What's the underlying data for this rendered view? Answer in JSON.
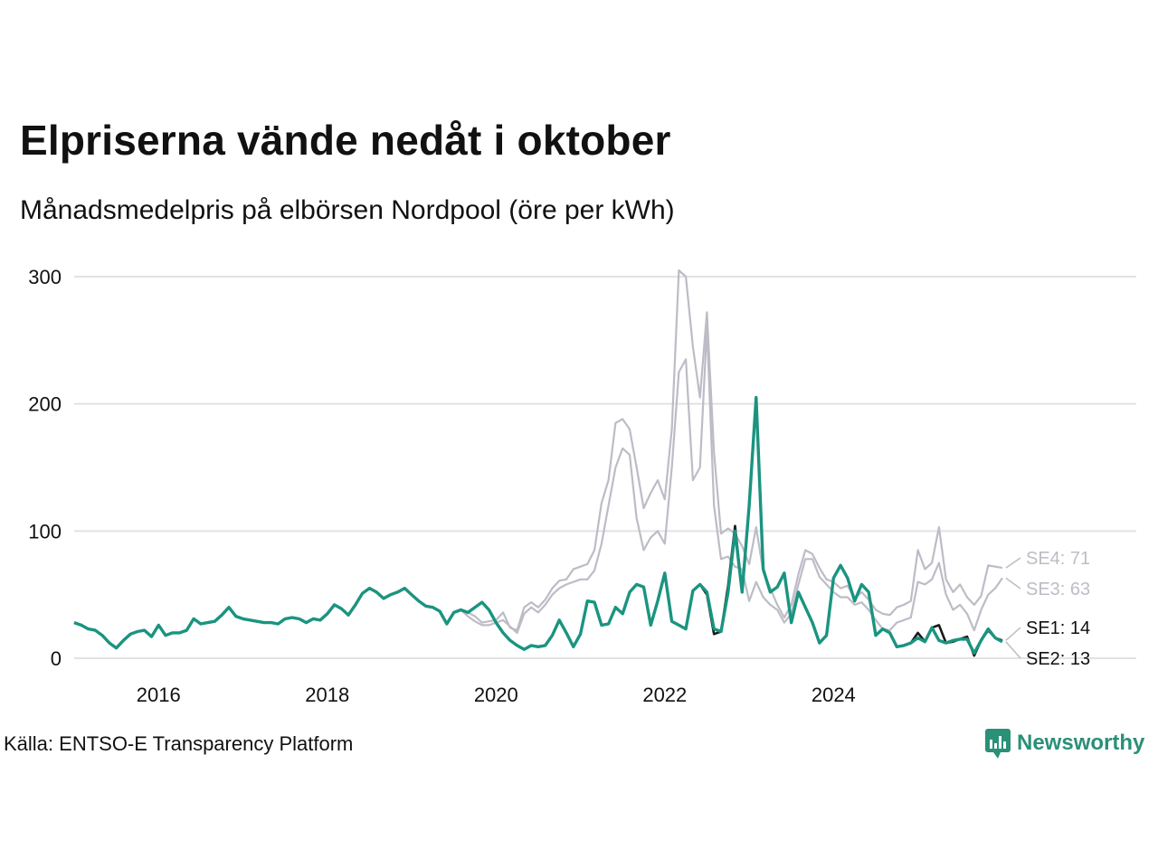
{
  "title": "Elpriserna vände nedåt i oktober",
  "subtitle": "Månadsmedelpris på elbörsen Nordpool (öre per kWh)",
  "source": "Källa: ENTSO-E Transparency Platform",
  "brand": {
    "name": "Newsworthy",
    "color": "#2a9078",
    "icon": "newsworthy-logo-icon"
  },
  "colors": {
    "highlight": "#1a9480",
    "se1": "#1a1a1a",
    "context": "#bdbcc6",
    "grid": "#e2e2e6"
  },
  "chart_data": {
    "type": "line",
    "title": "Elpriserna vände nedåt i oktober",
    "subtitle": "Månadsmedelpris på elbörsen Nordpool (öre per kWh)",
    "xlabel": "",
    "ylabel": "",
    "ylim": [
      0,
      300
    ],
    "xlim": [
      2015.0,
      2025.83
    ],
    "yticks": [
      0,
      100,
      200,
      300
    ],
    "yticklabels": [
      "0",
      "100",
      "200",
      "300"
    ],
    "xticks": [
      2016,
      2018,
      2020,
      2022,
      2024
    ],
    "xticklabels": [
      "2016",
      "2018",
      "2020",
      "2022",
      "2024"
    ],
    "grid": true,
    "start": "2015-01",
    "frequency": "monthly",
    "base": [
      28,
      26,
      23,
      22,
      18,
      12,
      8,
      14,
      19,
      21,
      22,
      17,
      26,
      18,
      20,
      20,
      22,
      31,
      27,
      28,
      29,
      34,
      40,
      33,
      31,
      30,
      29,
      28,
      28,
      27,
      31,
      32,
      31,
      28,
      31,
      30,
      35,
      42,
      39,
      34,
      42,
      51,
      55,
      52,
      47,
      50,
      52,
      55,
      50,
      45,
      41,
      40,
      37,
      27,
      36,
      38,
      36,
      40,
      44,
      38,
      28,
      20,
      14,
      10,
      7,
      10,
      9,
      10,
      18,
      30,
      20,
      9,
      19,
      45,
      44,
      26,
      27,
      40,
      35,
      52,
      58,
      56,
      26,
      45,
      67,
      29,
      26,
      23,
      53,
      58,
      52,
      23,
      21,
      52,
      100,
      52,
      120,
      205,
      70,
      52,
      56,
      67,
      28,
      52,
      40,
      28,
      12,
      18,
      63,
      73,
      63,
      45,
      58,
      52,
      18,
      23,
      20,
      9,
      10,
      12,
      16,
      13,
      24,
      14,
      12,
      14,
      15,
      15,
      4,
      14,
      23,
      16,
      13
    ],
    "series": [
      {
        "name": "SE1",
        "last_value": 14,
        "label": "SE1: 14",
        "color": "#1a1a1a",
        "deltas": {
          "90": -2,
          "91": -4,
          "93": 5,
          "94": 4,
          "120": 4,
          "123": 12,
          "125": -1,
          "127": 2,
          "128": -2,
          "130": -1,
          "132": 1
        }
      },
      {
        "name": "SE2",
        "last_value": 13,
        "label": "SE2: 13",
        "color": "#1a9480",
        "highlight": true,
        "deltas": {}
      },
      {
        "name": "SE3",
        "last_value": 63,
        "label": "SE3: 63",
        "color": "#bdbcc6",
        "values_recent": [
          33,
          29,
          26,
          26,
          28,
          30,
          25,
          20,
          35,
          40,
          36,
          42,
          50,
          55,
          58,
          60,
          62,
          62,
          69,
          90,
          120,
          150,
          165,
          160,
          110,
          85,
          95,
          100,
          90,
          150,
          225,
          235,
          140,
          150,
          260,
          120,
          78,
          80,
          72,
          70,
          45,
          60,
          48,
          42,
          38,
          28,
          35,
          58,
          78,
          78,
          64,
          58,
          52,
          48,
          48,
          42,
          44,
          38,
          30,
          23,
          22,
          28,
          30,
          32,
          60,
          58,
          62,
          75,
          50,
          38,
          42,
          35,
          22,
          38,
          50,
          55,
          63
        ]
      },
      {
        "name": "SE4",
        "last_value": 71,
        "label": "SE4: 71",
        "color": "#bdbcc6",
        "values_recent": [
          36,
          33,
          28,
          29,
          30,
          36,
          24,
          22,
          40,
          44,
          40,
          46,
          55,
          61,
          62,
          70,
          72,
          74,
          85,
          122,
          140,
          185,
          188,
          180,
          150,
          118,
          130,
          140,
          125,
          180,
          305,
          300,
          245,
          205,
          272,
          162,
          98,
          102,
          98,
          88,
          74,
          103,
          68,
          55,
          42,
          32,
          42,
          66,
          85,
          82,
          71,
          62,
          60,
          55,
          57,
          47,
          52,
          46,
          38,
          35,
          34,
          40,
          42,
          45,
          85,
          70,
          75,
          103,
          62,
          52,
          58,
          48,
          42,
          49,
          73,
          72,
          71
        ]
      }
    ],
    "recent_start": "2019-09",
    "end_labels": [
      "SE4: 71",
      "SE3: 63",
      "SE1: 14",
      "SE2: 13"
    ]
  }
}
